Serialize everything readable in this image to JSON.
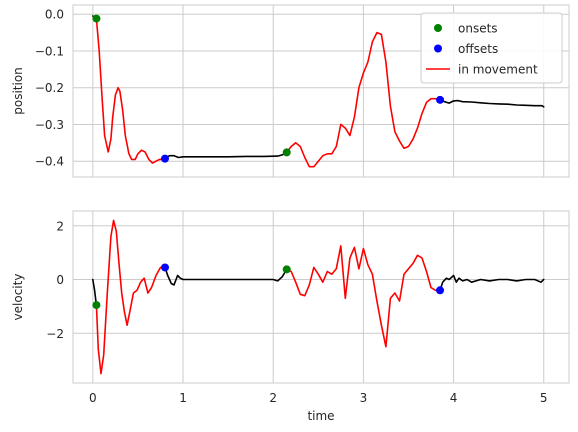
{
  "chart_data": [
    {
      "type": "line",
      "xlabel": "",
      "ylabel": "position",
      "xlim": [
        -0.22,
        5.28
      ],
      "ylim": [
        -0.443,
        0.025
      ],
      "xticks": [
        0,
        1,
        2,
        3,
        4,
        5
      ],
      "xtick_labels": [],
      "yticks": [
        0.0,
        -0.1,
        -0.2,
        -0.3,
        -0.4
      ],
      "ytick_labels": [
        "0.0",
        "−0.1",
        "−0.2",
        "−0.3",
        "−0.4"
      ],
      "grid": true,
      "colors": {
        "idle": "#000000",
        "movement": "#ff0000",
        "onsets": "#008000",
        "offsets": "#0000ff"
      },
      "legend": {
        "position": "top-right",
        "entries": [
          {
            "label": "onsets",
            "marker": "circle",
            "color": "#008000"
          },
          {
            "label": "offsets",
            "marker": "circle",
            "color": "#0000ff"
          },
          {
            "label": "in movement",
            "marker": "line",
            "color": "#ff0000"
          }
        ]
      },
      "series": [
        {
          "role": "idle",
          "color": "#000000",
          "x": [
            0.0,
            0.02,
            0.04
          ],
          "y": [
            -0.005,
            -0.008,
            -0.012
          ]
        },
        {
          "role": "movement",
          "color": "#ff0000",
          "x": [
            0.04,
            0.07,
            0.1,
            0.13,
            0.17,
            0.2,
            0.22,
            0.25,
            0.28,
            0.3,
            0.33,
            0.36,
            0.4,
            0.43,
            0.47,
            0.5,
            0.54,
            0.58,
            0.62,
            0.66,
            0.7,
            0.74,
            0.78,
            0.8
          ],
          "y": [
            -0.012,
            -0.1,
            -0.22,
            -0.33,
            -0.375,
            -0.34,
            -0.28,
            -0.22,
            -0.2,
            -0.21,
            -0.26,
            -0.33,
            -0.38,
            -0.395,
            -0.395,
            -0.38,
            -0.37,
            -0.375,
            -0.395,
            -0.405,
            -0.4,
            -0.395,
            -0.395,
            -0.393
          ]
        },
        {
          "role": "idle",
          "color": "#000000",
          "x": [
            0.8,
            0.85,
            0.9,
            0.95,
            1.0,
            1.1,
            1.3,
            1.5,
            1.7,
            1.9,
            2.05,
            2.1,
            2.15
          ],
          "y": [
            -0.393,
            -0.385,
            -0.385,
            -0.39,
            -0.388,
            -0.388,
            -0.388,
            -0.388,
            -0.387,
            -0.387,
            -0.386,
            -0.383,
            -0.376
          ]
        },
        {
          "role": "movement",
          "color": "#ff0000",
          "x": [
            2.15,
            2.2,
            2.25,
            2.3,
            2.35,
            2.4,
            2.45,
            2.5,
            2.55,
            2.6,
            2.65,
            2.7,
            2.75,
            2.8,
            2.85,
            2.9,
            2.95,
            3.0,
            3.05,
            3.1,
            3.15,
            3.2,
            3.25,
            3.3,
            3.35,
            3.4,
            3.45,
            3.5,
            3.55,
            3.6,
            3.65,
            3.7,
            3.75,
            3.8,
            3.85
          ],
          "y": [
            -0.376,
            -0.36,
            -0.35,
            -0.36,
            -0.39,
            -0.415,
            -0.415,
            -0.4,
            -0.385,
            -0.38,
            -0.38,
            -0.36,
            -0.3,
            -0.31,
            -0.33,
            -0.28,
            -0.2,
            -0.16,
            -0.13,
            -0.075,
            -0.05,
            -0.055,
            -0.13,
            -0.25,
            -0.32,
            -0.345,
            -0.365,
            -0.36,
            -0.34,
            -0.31,
            -0.27,
            -0.24,
            -0.23,
            -0.23,
            -0.233
          ]
        },
        {
          "role": "idle",
          "color": "#000000",
          "x": [
            3.85,
            3.9,
            3.95,
            4.0,
            4.05,
            4.1,
            4.2,
            4.3,
            4.4,
            4.5,
            4.6,
            4.7,
            4.8,
            4.9,
            4.98,
            5.0
          ],
          "y": [
            -0.233,
            -0.238,
            -0.242,
            -0.236,
            -0.235,
            -0.238,
            -0.239,
            -0.241,
            -0.243,
            -0.244,
            -0.245,
            -0.247,
            -0.248,
            -0.249,
            -0.249,
            -0.252
          ]
        }
      ],
      "markers": [
        {
          "kind": "onset",
          "color": "#008000",
          "x": 0.04,
          "y": -0.012
        },
        {
          "kind": "onset",
          "color": "#008000",
          "x": 2.15,
          "y": -0.376
        },
        {
          "kind": "offset",
          "color": "#0000ff",
          "x": 0.8,
          "y": -0.393
        },
        {
          "kind": "offset",
          "color": "#0000ff",
          "x": 3.85,
          "y": -0.233
        }
      ]
    },
    {
      "type": "line",
      "xlabel": "time",
      "ylabel": "velocity",
      "xlim": [
        -0.22,
        5.28
      ],
      "ylim": [
        -3.85,
        2.55
      ],
      "xticks": [
        0,
        1,
        2,
        3,
        4,
        5
      ],
      "xtick_labels": [
        "0",
        "1",
        "2",
        "3",
        "4",
        "5"
      ],
      "yticks": [
        2,
        0,
        -2
      ],
      "ytick_labels": [
        "2",
        "0",
        "−2"
      ],
      "grid": true,
      "colors": {
        "idle": "#000000",
        "movement": "#ff0000",
        "onsets": "#008000",
        "offsets": "#0000ff"
      },
      "series": [
        {
          "role": "idle",
          "color": "#000000",
          "x": [
            0.0,
            0.02,
            0.04
          ],
          "y": [
            0.0,
            -0.4,
            -0.95
          ]
        },
        {
          "role": "movement",
          "color": "#ff0000",
          "x": [
            0.04,
            0.06,
            0.09,
            0.12,
            0.16,
            0.2,
            0.23,
            0.26,
            0.29,
            0.32,
            0.35,
            0.38,
            0.41,
            0.45,
            0.49,
            0.53,
            0.57,
            0.61,
            0.65,
            0.7,
            0.75,
            0.8
          ],
          "y": [
            -0.95,
            -2.6,
            -3.5,
            -2.8,
            -0.5,
            1.6,
            2.2,
            1.8,
            0.6,
            -0.5,
            -1.2,
            -1.7,
            -1.2,
            -0.5,
            -0.4,
            -0.1,
            0.05,
            -0.5,
            -0.3,
            0.15,
            0.45,
            0.45
          ]
        },
        {
          "role": "idle",
          "color": "#000000",
          "x": [
            0.8,
            0.83,
            0.87,
            0.9,
            0.94,
            0.97,
            1.0,
            1.1,
            1.3,
            1.5,
            1.7,
            1.9,
            2.0,
            2.05,
            2.1,
            2.15
          ],
          "y": [
            0.45,
            0.15,
            -0.15,
            -0.2,
            0.15,
            0.05,
            0.0,
            0.0,
            0.0,
            0.0,
            0.0,
            0.0,
            0.0,
            -0.05,
            0.1,
            0.38
          ]
        },
        {
          "role": "movement",
          "color": "#ff0000",
          "x": [
            2.15,
            2.2,
            2.25,
            2.3,
            2.35,
            2.4,
            2.45,
            2.5,
            2.55,
            2.6,
            2.65,
            2.7,
            2.75,
            2.8,
            2.85,
            2.9,
            2.95,
            3.0,
            3.05,
            3.1,
            3.15,
            3.2,
            3.25,
            3.3,
            3.35,
            3.4,
            3.45,
            3.5,
            3.55,
            3.6,
            3.65,
            3.7,
            3.75,
            3.8,
            3.85
          ],
          "y": [
            0.38,
            0.3,
            -0.1,
            -0.55,
            -0.6,
            -0.2,
            0.45,
            0.2,
            -0.1,
            0.3,
            0.2,
            0.4,
            1.25,
            -0.7,
            0.8,
            1.2,
            0.4,
            1.15,
            0.55,
            0.2,
            -0.8,
            -1.7,
            -2.5,
            -0.7,
            -0.5,
            -0.8,
            0.2,
            0.4,
            0.6,
            0.9,
            0.8,
            0.3,
            -0.3,
            -0.4,
            -0.4
          ]
        },
        {
          "role": "idle",
          "color": "#000000",
          "x": [
            3.85,
            3.88,
            3.92,
            3.95,
            4.0,
            4.03,
            4.06,
            4.1,
            4.15,
            4.2,
            4.3,
            4.4,
            4.5,
            4.6,
            4.7,
            4.8,
            4.9,
            4.97,
            5.0
          ],
          "y": [
            -0.4,
            -0.1,
            0.05,
            0.0,
            0.15,
            -0.1,
            0.05,
            -0.05,
            0.0,
            -0.1,
            0.0,
            -0.05,
            0.0,
            0.0,
            -0.05,
            0.0,
            0.0,
            -0.1,
            0.0
          ]
        }
      ],
      "markers": [
        {
          "kind": "onset",
          "color": "#008000",
          "x": 0.04,
          "y": -0.95
        },
        {
          "kind": "onset",
          "color": "#008000",
          "x": 2.15,
          "y": 0.38
        },
        {
          "kind": "offset",
          "color": "#0000ff",
          "x": 0.8,
          "y": 0.45
        },
        {
          "kind": "offset",
          "color": "#0000ff",
          "x": 3.85,
          "y": -0.4
        }
      ]
    }
  ]
}
